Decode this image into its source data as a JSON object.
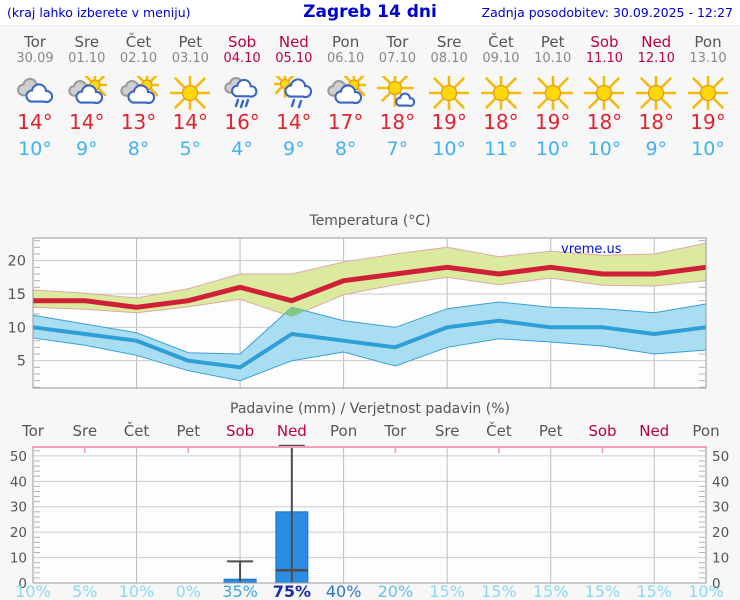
{
  "header": {
    "menu_hint": "(kraj lahko izberete v meniju)",
    "title": "Zagreb 14 dni",
    "last_update": "Zadnja posodobitev: 30.09.2025 - 12:27"
  },
  "colors": {
    "header_blue": "#0000d0",
    "day_gray": "#555555",
    "date_gray": "#888888",
    "weekend_red": "#bb0045",
    "tmax_red": "#e02330",
    "tmin_blue": "#42b2ee",
    "max_line": "#cf2038",
    "max_band_fill": "#dcea9f",
    "max_band_edge": "#dfa9a5",
    "min_line": "#2f9ed6",
    "min_band_fill": "#a9def2",
    "min_band_edge": "#3a9fd6",
    "band_overlap": "#83c983",
    "bar_blue": "#2a8ce2",
    "bar_edge": "#1d74c4",
    "whisker_gray": "#4d4d4d",
    "grid_gray": "#cccccc",
    "vgrid_gray": "#bdbdbd",
    "axis_gray": "#999999",
    "pink_axis": "#f0a0bc",
    "watermark_blue": "#0011dd"
  },
  "days": [
    {
      "name": "Tor",
      "date": "30.09",
      "weekend": false,
      "icon": "cloudy",
      "tmax": "14°",
      "tmin": "10°",
      "pop": "10%",
      "pop_color": "#8ad9f2",
      "pop_bold": false
    },
    {
      "name": "Sre",
      "date": "01.10",
      "weekend": false,
      "icon": "sun-clouds",
      "tmax": "14°",
      "tmin": "9°",
      "pop": "5%",
      "pop_color": "#8ad9f2",
      "pop_bold": false
    },
    {
      "name": "Čet",
      "date": "02.10",
      "weekend": false,
      "icon": "sun-clouds",
      "tmax": "13°",
      "tmin": "8°",
      "pop": "10%",
      "pop_color": "#8ad9f2",
      "pop_bold": false
    },
    {
      "name": "Pet",
      "date": "03.10",
      "weekend": false,
      "icon": "sunny",
      "tmax": "14°",
      "tmin": "5°",
      "pop": "0%",
      "pop_color": "#8ad9f2",
      "pop_bold": false
    },
    {
      "name": "Sob",
      "date": "04.10",
      "weekend": true,
      "icon": "rain",
      "tmax": "16°",
      "tmin": "4°",
      "pop": "35%",
      "pop_color": "#3aa6dd",
      "pop_bold": false
    },
    {
      "name": "Ned",
      "date": "05.10",
      "weekend": true,
      "icon": "sun-rain",
      "tmax": "14°",
      "tmin": "9°",
      "pop": "75%",
      "pop_color": "#1b2ca6",
      "pop_bold": true
    },
    {
      "name": "Pon",
      "date": "06.10",
      "weekend": false,
      "icon": "sun-clouds",
      "tmax": "17°",
      "tmin": "8°",
      "pop": "40%",
      "pop_color": "#2b76cf",
      "pop_bold": false
    },
    {
      "name": "Tor",
      "date": "07.10",
      "weekend": false,
      "icon": "sun-small-cloud",
      "tmax": "18°",
      "tmin": "7°",
      "pop": "20%",
      "pop_color": "#62c6ea",
      "pop_bold": false
    },
    {
      "name": "Sre",
      "date": "08.10",
      "weekend": false,
      "icon": "sunny",
      "tmax": "19°",
      "tmin": "10°",
      "pop": "15%",
      "pop_color": "#8ad9f2",
      "pop_bold": false
    },
    {
      "name": "Čet",
      "date": "09.10",
      "weekend": false,
      "icon": "sunny",
      "tmax": "18°",
      "tmin": "11°",
      "pop": "15%",
      "pop_color": "#8ad9f2",
      "pop_bold": false
    },
    {
      "name": "Pet",
      "date": "10.10",
      "weekend": false,
      "icon": "sunny",
      "tmax": "19°",
      "tmin": "10°",
      "pop": "15%",
      "pop_color": "#8ad9f2",
      "pop_bold": false
    },
    {
      "name": "Sob",
      "date": "11.10",
      "weekend": true,
      "icon": "sunny",
      "tmax": "18°",
      "tmin": "10°",
      "pop": "15%",
      "pop_color": "#8ad9f2",
      "pop_bold": false
    },
    {
      "name": "Ned",
      "date": "12.10",
      "weekend": true,
      "icon": "sunny",
      "tmax": "18°",
      "tmin": "9°",
      "pop": "15%",
      "pop_color": "#8ad9f2",
      "pop_bold": false
    },
    {
      "name": "Pon",
      "date": "13.10",
      "weekend": false,
      "icon": "sunny",
      "tmax": "19°",
      "tmin": "10°",
      "pop": "10%",
      "pop_color": "#8ad9f2",
      "pop_bold": false
    }
  ],
  "chart_data": [
    {
      "type": "area",
      "title": "Temperatura (°C)",
      "watermark": "vreme.us",
      "x": [
        "Tor",
        "Sre",
        "Čet",
        "Pet",
        "Sob",
        "Ned",
        "Pon",
        "Tor",
        "Sre",
        "Čet",
        "Pet",
        "Sob",
        "Ned",
        "Pon"
      ],
      "ylim": [
        0.9,
        23.4
      ],
      "yticks": [
        5,
        10,
        15,
        20
      ],
      "grid": true,
      "series": [
        {
          "name": "tmax",
          "values": [
            14,
            14,
            13,
            14,
            16,
            14,
            17,
            18,
            19,
            18,
            19,
            18,
            18,
            19
          ]
        },
        {
          "name": "tmax_range_upper",
          "values": [
            15.6,
            15.1,
            14.4,
            15.8,
            18,
            18,
            19.8,
            21,
            22,
            20.6,
            21.4,
            20.8,
            21,
            22.6
          ]
        },
        {
          "name": "tmax_range_lower",
          "values": [
            13,
            12.7,
            12.2,
            13.1,
            14.2,
            11.6,
            14.9,
            16.4,
            17.5,
            16.4,
            17.4,
            16.3,
            16.2,
            17
          ]
        },
        {
          "name": "tmin",
          "values": [
            10,
            9,
            8,
            5,
            4,
            9,
            8,
            7,
            10,
            11,
            10,
            10,
            9,
            10
          ]
        },
        {
          "name": "tmin_range_upper",
          "values": [
            11.8,
            10.5,
            9.2,
            6.2,
            6,
            13,
            11,
            10,
            12.8,
            13.8,
            13,
            12.8,
            12.2,
            13.5
          ]
        },
        {
          "name": "tmin_range_lower",
          "values": [
            8.4,
            7.3,
            5.8,
            3.5,
            2,
            5,
            6.3,
            4.2,
            7,
            8.3,
            7.8,
            7.2,
            6,
            6.6
          ]
        }
      ]
    },
    {
      "type": "bar",
      "title": "Padavine (mm) / Verjetnost padavin (%)",
      "x": [
        "Tor",
        "Sre",
        "Čet",
        "Pet",
        "Sob",
        "Ned",
        "Pon",
        "Tor",
        "Sre",
        "Čet",
        "Pet",
        "Sob",
        "Ned",
        "Pon"
      ],
      "x_weekend": [
        false,
        false,
        false,
        false,
        true,
        true,
        false,
        false,
        false,
        false,
        false,
        true,
        true,
        false
      ],
      "ylim": [
        0,
        53.5
      ],
      "yticks": [
        0,
        10,
        20,
        30,
        40,
        50
      ],
      "grid": true,
      "bars_mm": [
        0,
        0,
        0,
        0,
        1.5,
        28,
        0,
        0,
        0,
        0,
        0,
        0,
        0,
        0
      ],
      "whisker_high": [
        null,
        null,
        null,
        null,
        8.5,
        54,
        null,
        null,
        null,
        null,
        null,
        null,
        null,
        null
      ],
      "whisker_low": [
        null,
        null,
        null,
        null,
        null,
        5,
        null,
        null,
        null,
        null,
        null,
        null,
        null,
        null
      ],
      "pop_percent": [
        10,
        5,
        10,
        0,
        35,
        75,
        40,
        20,
        15,
        15,
        15,
        15,
        15,
        10
      ]
    }
  ]
}
